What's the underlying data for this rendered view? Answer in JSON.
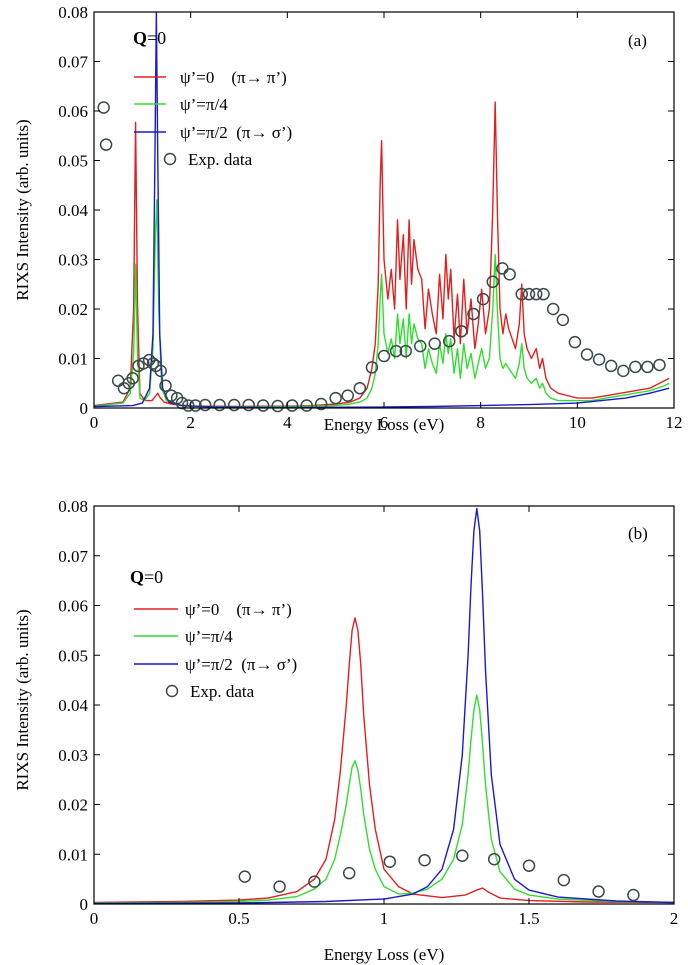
{
  "colors": {
    "psi0": "#e02020",
    "psi_pi4": "#30dd30",
    "psi_pi2": "#1a1acc",
    "exp_edge": "#3a4a48"
  },
  "chart_data": [
    {
      "type": "line",
      "panel_label": "(a)",
      "annotation": {
        "bold": "Q",
        "text": "=0"
      },
      "xlabel": "Energy Loss (eV)",
      "ylabel": "RIXS Intensity (arb. units)",
      "xlim": [
        0,
        12
      ],
      "ylim": [
        0,
        0.08
      ],
      "xticks": [
        0,
        2,
        4,
        6,
        8,
        10,
        12
      ],
      "xtick_labels": [
        "0",
        "2",
        "4",
        "6",
        "8",
        "10",
        "12"
      ],
      "yticks": [
        0,
        0.01,
        0.02,
        0.03,
        0.04,
        0.05,
        0.06,
        0.07,
        0.08
      ],
      "ytick_labels": [
        "0",
        "0.01",
        "0.02",
        "0.03",
        "0.04",
        "0.05",
        "0.06",
        "0.07",
        "0.08"
      ],
      "legend_position": "top-left",
      "series": [
        {
          "name": "ψ’=0    (π→ π’)",
          "color": "#e02020",
          "x": [
            0,
            0.6,
            0.75,
            0.82,
            0.86,
            0.9,
            0.95,
            1.05,
            1.2,
            1.28,
            1.32,
            1.36,
            1.45,
            1.6,
            2,
            3,
            4,
            4.5,
            5,
            5.3,
            5.5,
            5.65,
            5.75,
            5.82,
            5.88,
            5.92,
            5.95,
            6.0,
            6.08,
            6.15,
            6.22,
            6.28,
            6.33,
            6.4,
            6.46,
            6.52,
            6.57,
            6.62,
            6.7,
            6.78,
            6.85,
            6.92,
            7.0,
            7.08,
            7.15,
            7.22,
            7.28,
            7.33,
            7.38,
            7.45,
            7.52,
            7.58,
            7.65,
            7.72,
            7.8,
            7.88,
            7.95,
            8.02,
            8.1,
            8.18,
            8.25,
            8.3,
            8.35,
            8.4,
            8.46,
            8.52,
            8.58,
            8.65,
            8.72,
            8.8,
            8.85,
            8.9,
            8.96,
            9.05,
            9.15,
            9.22,
            9.28,
            9.35,
            9.45,
            9.6,
            9.8,
            10.0,
            10.3,
            10.6,
            10.9,
            11.2,
            11.5,
            11.8,
            11.9
          ],
          "y": [
            0.0005,
            0.0012,
            0.004,
            0.02,
            0.0577,
            0.021,
            0.003,
            0.0015,
            0.0015,
            0.0025,
            0.003,
            0.0022,
            0.0012,
            0.0008,
            0.0004,
            0.0003,
            0.0004,
            0.0005,
            0.0008,
            0.0012,
            0.002,
            0.004,
            0.008,
            0.013,
            0.025,
            0.045,
            0.054,
            0.03,
            0.022,
            0.028,
            0.02,
            0.038,
            0.026,
            0.035,
            0.02,
            0.038,
            0.025,
            0.034,
            0.028,
            0.026,
            0.016,
            0.024,
            0.019,
            0.015,
            0.027,
            0.018,
            0.031,
            0.022,
            0.028,
            0.014,
            0.023,
            0.013,
            0.026,
            0.015,
            0.022,
            0.012,
            0.017,
            0.024,
            0.015,
            0.02,
            0.04,
            0.0618,
            0.038,
            0.02,
            0.015,
            0.019,
            0.016,
            0.014,
            0.012,
            0.017,
            0.025,
            0.015,
            0.012,
            0.01,
            0.012,
            0.008,
            0.01,
            0.006,
            0.004,
            0.003,
            0.0025,
            0.002,
            0.002,
            0.0025,
            0.003,
            0.0035,
            0.004,
            0.0055,
            0.006
          ]
        },
        {
          "name": "ψ’=π/4",
          "color": "#30dd30",
          "x": [
            0,
            0.6,
            0.75,
            0.82,
            0.86,
            0.9,
            0.95,
            1.05,
            1.15,
            1.22,
            1.27,
            1.3,
            1.34,
            1.4,
            1.5,
            1.7,
            2,
            3,
            4,
            4.5,
            5,
            5.3,
            5.5,
            5.65,
            5.75,
            5.82,
            5.88,
            5.92,
            5.95,
            6.0,
            6.08,
            6.15,
            6.22,
            6.28,
            6.33,
            6.4,
            6.46,
            6.52,
            6.57,
            6.62,
            6.7,
            6.78,
            6.85,
            6.92,
            7.0,
            7.08,
            7.15,
            7.22,
            7.28,
            7.33,
            7.38,
            7.45,
            7.52,
            7.58,
            7.65,
            7.72,
            7.8,
            7.88,
            7.95,
            8.02,
            8.1,
            8.18,
            8.25,
            8.3,
            8.35,
            8.4,
            8.46,
            8.52,
            8.58,
            8.65,
            8.72,
            8.8,
            8.85,
            8.9,
            8.96,
            9.05,
            9.15,
            9.22,
            9.28,
            9.35,
            9.45,
            9.6,
            9.8,
            10.0,
            10.3,
            10.6,
            10.9,
            11.2,
            11.5,
            11.8,
            11.9
          ],
          "y": [
            0.0004,
            0.001,
            0.003,
            0.011,
            0.029,
            0.011,
            0.002,
            0.0015,
            0.003,
            0.012,
            0.035,
            0.042,
            0.02,
            0.004,
            0.0015,
            0.0008,
            0.0003,
            0.0002,
            0.0003,
            0.0004,
            0.0005,
            0.0008,
            0.0012,
            0.002,
            0.004,
            0.007,
            0.013,
            0.022,
            0.027,
            0.015,
            0.011,
            0.014,
            0.01,
            0.019,
            0.013,
            0.018,
            0.01,
            0.019,
            0.013,
            0.017,
            0.014,
            0.013,
            0.008,
            0.012,
            0.009,
            0.007,
            0.013,
            0.009,
            0.015,
            0.011,
            0.014,
            0.007,
            0.012,
            0.006,
            0.013,
            0.008,
            0.011,
            0.006,
            0.009,
            0.012,
            0.008,
            0.01,
            0.02,
            0.031,
            0.019,
            0.01,
            0.008,
            0.009,
            0.008,
            0.007,
            0.006,
            0.009,
            0.013,
            0.008,
            0.006,
            0.005,
            0.006,
            0.004,
            0.005,
            0.003,
            0.002,
            0.0015,
            0.0015,
            0.0015,
            0.0015,
            0.002,
            0.0025,
            0.003,
            0.0035,
            0.0045,
            0.005
          ]
        },
        {
          "name": "ψ’=π/2  (π→ σ’)",
          "color": "#1a1acc",
          "x": [
            0,
            0.8,
            1.0,
            1.15,
            1.22,
            1.26,
            1.29,
            1.32,
            1.36,
            1.42,
            1.55,
            1.8,
            2.5,
            4,
            6,
            7,
            8,
            9,
            10,
            10.5,
            11,
            11.5,
            11.9
          ],
          "y": [
            0.0003,
            0.0005,
            0.001,
            0.004,
            0.015,
            0.05,
            0.08,
            0.05,
            0.015,
            0.004,
            0.0012,
            0.0005,
            0.0002,
            0.0001,
            0.0002,
            0.0003,
            0.0005,
            0.0007,
            0.001,
            0.0015,
            0.002,
            0.003,
            0.004
          ]
        }
      ],
      "scatter": {
        "name": "Exp. data",
        "x": [
          0.2,
          0.25,
          0.5,
          0.62,
          0.72,
          0.8,
          0.92,
          1.02,
          1.14,
          1.22,
          1.28,
          1.38,
          1.48,
          1.6,
          1.72,
          1.82,
          1.95,
          2.1,
          2.3,
          2.6,
          2.9,
          3.2,
          3.5,
          3.8,
          4.1,
          4.4,
          4.7,
          5.0,
          5.25,
          5.5,
          5.75,
          6.0,
          6.25,
          6.45,
          6.75,
          7.05,
          7.35,
          7.6,
          7.85,
          8.05,
          8.25,
          8.45,
          8.6,
          8.85,
          9.0,
          9.15,
          9.3,
          9.5,
          9.7,
          9.95,
          10.2,
          10.45,
          10.7,
          10.95,
          11.2,
          11.45,
          11.7
        ],
        "y": [
          0.0607,
          0.0532,
          0.0055,
          0.004,
          0.005,
          0.006,
          0.0085,
          0.009,
          0.0097,
          0.009,
          0.0085,
          0.0075,
          0.0045,
          0.0025,
          0.002,
          0.001,
          0.0005,
          0.0005,
          0.0006,
          0.0006,
          0.0006,
          0.0006,
          0.0005,
          0.0004,
          0.0005,
          0.0005,
          0.0008,
          0.002,
          0.0025,
          0.004,
          0.0082,
          0.0105,
          0.0115,
          0.0115,
          0.0125,
          0.013,
          0.0135,
          0.0155,
          0.019,
          0.022,
          0.0255,
          0.0282,
          0.027,
          0.023,
          0.023,
          0.023,
          0.023,
          0.02,
          0.0178,
          0.0133,
          0.0108,
          0.0098,
          0.0085,
          0.0075,
          0.0083,
          0.0083,
          0.0087
        ]
      }
    },
    {
      "type": "line",
      "panel_label": "(b)",
      "annotation": {
        "bold": "Q",
        "text": "=0"
      },
      "xlabel": "Energy Loss (eV)",
      "ylabel": "RIXS Intensity (arb. units)",
      "xlim": [
        0,
        2
      ],
      "ylim": [
        0,
        0.08
      ],
      "xticks": [
        0,
        0.5,
        1,
        1.5,
        2
      ],
      "xtick_labels": [
        "0",
        "0.5",
        "1",
        "1.5",
        "2"
      ],
      "yticks": [
        0,
        0.01,
        0.02,
        0.03,
        0.04,
        0.05,
        0.06,
        0.07,
        0.08
      ],
      "ytick_labels": [
        "0",
        "0.01",
        "0.02",
        "0.03",
        "0.04",
        "0.05",
        "0.06",
        "0.07",
        "0.08"
      ],
      "legend_position": "top-left",
      "series": [
        {
          "name": "ψ’=0    (π→ π’)",
          "color": "#e02020",
          "x": [
            0,
            0.3,
            0.5,
            0.6,
            0.7,
            0.76,
            0.8,
            0.83,
            0.85,
            0.87,
            0.88,
            0.89,
            0.9,
            0.91,
            0.92,
            0.93,
            0.95,
            0.97,
            1.0,
            1.05,
            1.1,
            1.2,
            1.28,
            1.32,
            1.34,
            1.36,
            1.4,
            1.5,
            1.7,
            2
          ],
          "y": [
            0.0003,
            0.0005,
            0.0008,
            0.0012,
            0.0025,
            0.005,
            0.009,
            0.017,
            0.027,
            0.04,
            0.048,
            0.055,
            0.0575,
            0.055,
            0.048,
            0.038,
            0.024,
            0.015,
            0.007,
            0.0035,
            0.002,
            0.0013,
            0.0018,
            0.0028,
            0.0032,
            0.0024,
            0.0012,
            0.0007,
            0.0004,
            0.0003
          ]
        },
        {
          "name": "ψ’=π/4",
          "color": "#30dd30",
          "x": [
            0,
            0.3,
            0.5,
            0.6,
            0.7,
            0.76,
            0.8,
            0.83,
            0.85,
            0.87,
            0.88,
            0.89,
            0.9,
            0.91,
            0.92,
            0.93,
            0.95,
            0.97,
            1.0,
            1.05,
            1.1,
            1.15,
            1.2,
            1.24,
            1.27,
            1.29,
            1.3,
            1.31,
            1.32,
            1.33,
            1.34,
            1.35,
            1.37,
            1.4,
            1.45,
            1.5,
            1.6,
            1.8,
            2
          ],
          "y": [
            0.0002,
            0.0003,
            0.0005,
            0.0008,
            0.0015,
            0.003,
            0.005,
            0.009,
            0.014,
            0.02,
            0.024,
            0.0275,
            0.0288,
            0.027,
            0.023,
            0.018,
            0.011,
            0.007,
            0.0035,
            0.002,
            0.0022,
            0.003,
            0.005,
            0.009,
            0.016,
            0.026,
            0.033,
            0.039,
            0.042,
            0.039,
            0.032,
            0.024,
            0.013,
            0.0065,
            0.003,
            0.0018,
            0.001,
            0.0005,
            0.0003
          ]
        },
        {
          "name": "ψ’=π/2  (π→ σ’)",
          "color": "#1a1acc",
          "x": [
            0,
            0.5,
            0.8,
            1.0,
            1.1,
            1.15,
            1.2,
            1.24,
            1.27,
            1.29,
            1.3,
            1.31,
            1.32,
            1.33,
            1.34,
            1.35,
            1.37,
            1.4,
            1.45,
            1.5,
            1.6,
            1.8,
            2
          ],
          "y": [
            0.0001,
            0.0002,
            0.0005,
            0.001,
            0.002,
            0.0035,
            0.007,
            0.015,
            0.03,
            0.05,
            0.064,
            0.075,
            0.0795,
            0.075,
            0.062,
            0.047,
            0.026,
            0.012,
            0.005,
            0.0028,
            0.0014,
            0.0006,
            0.0003
          ]
        }
      ],
      "scatter": {
        "name": "Exp. data",
        "x": [
          0.52,
          0.64,
          0.76,
          0.88,
          1.02,
          1.14,
          1.27,
          1.38,
          1.5,
          1.62,
          1.74,
          1.86
        ],
        "y": [
          0.0055,
          0.0035,
          0.0045,
          0.0062,
          0.0085,
          0.0088,
          0.0097,
          0.009,
          0.0077,
          0.0048,
          0.0025,
          0.0018
        ]
      }
    }
  ]
}
